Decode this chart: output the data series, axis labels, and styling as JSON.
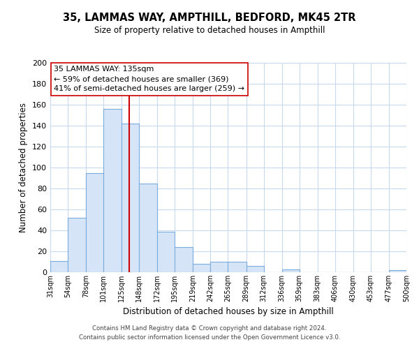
{
  "title": "35, LAMMAS WAY, AMPTHILL, BEDFORD, MK45 2TR",
  "subtitle": "Size of property relative to detached houses in Ampthill",
  "xlabel": "Distribution of detached houses by size in Ampthill",
  "ylabel": "Number of detached properties",
  "bar_edges": [
    31,
    54,
    78,
    101,
    125,
    148,
    172,
    195,
    219,
    242,
    265,
    289,
    312,
    336,
    359,
    383,
    406,
    430,
    453,
    477,
    500
  ],
  "bar_heights": [
    11,
    52,
    95,
    156,
    142,
    85,
    39,
    24,
    8,
    10,
    10,
    6,
    0,
    3,
    0,
    0,
    0,
    0,
    0,
    2
  ],
  "bar_color": "#d6e4f7",
  "bar_edge_color": "#7aaddb",
  "vline_x": 135,
  "vline_color": "#cc0000",
  "ylim": [
    0,
    200
  ],
  "yticks": [
    0,
    20,
    40,
    60,
    80,
    100,
    120,
    140,
    160,
    180,
    200
  ],
  "tick_labels": [
    "31sqm",
    "54sqm",
    "78sqm",
    "101sqm",
    "125sqm",
    "148sqm",
    "172sqm",
    "195sqm",
    "219sqm",
    "242sqm",
    "265sqm",
    "289sqm",
    "312sqm",
    "336sqm",
    "359sqm",
    "383sqm",
    "406sqm",
    "430sqm",
    "453sqm",
    "477sqm",
    "500sqm"
  ],
  "annotation_title": "35 LAMMAS WAY: 135sqm",
  "annotation_line1": "← 59% of detached houses are smaller (369)",
  "annotation_line2": "41% of semi-detached houses are larger (259) →",
  "footer_line1": "Contains HM Land Registry data © Crown copyright and database right 2024.",
  "footer_line2": "Contains public sector information licensed under the Open Government Licence v3.0.",
  "bg_color": "#ffffff",
  "grid_color": "#c8d8f0",
  "annotation_box_color": "#ffffff",
  "annotation_box_edge": "#cc0000"
}
